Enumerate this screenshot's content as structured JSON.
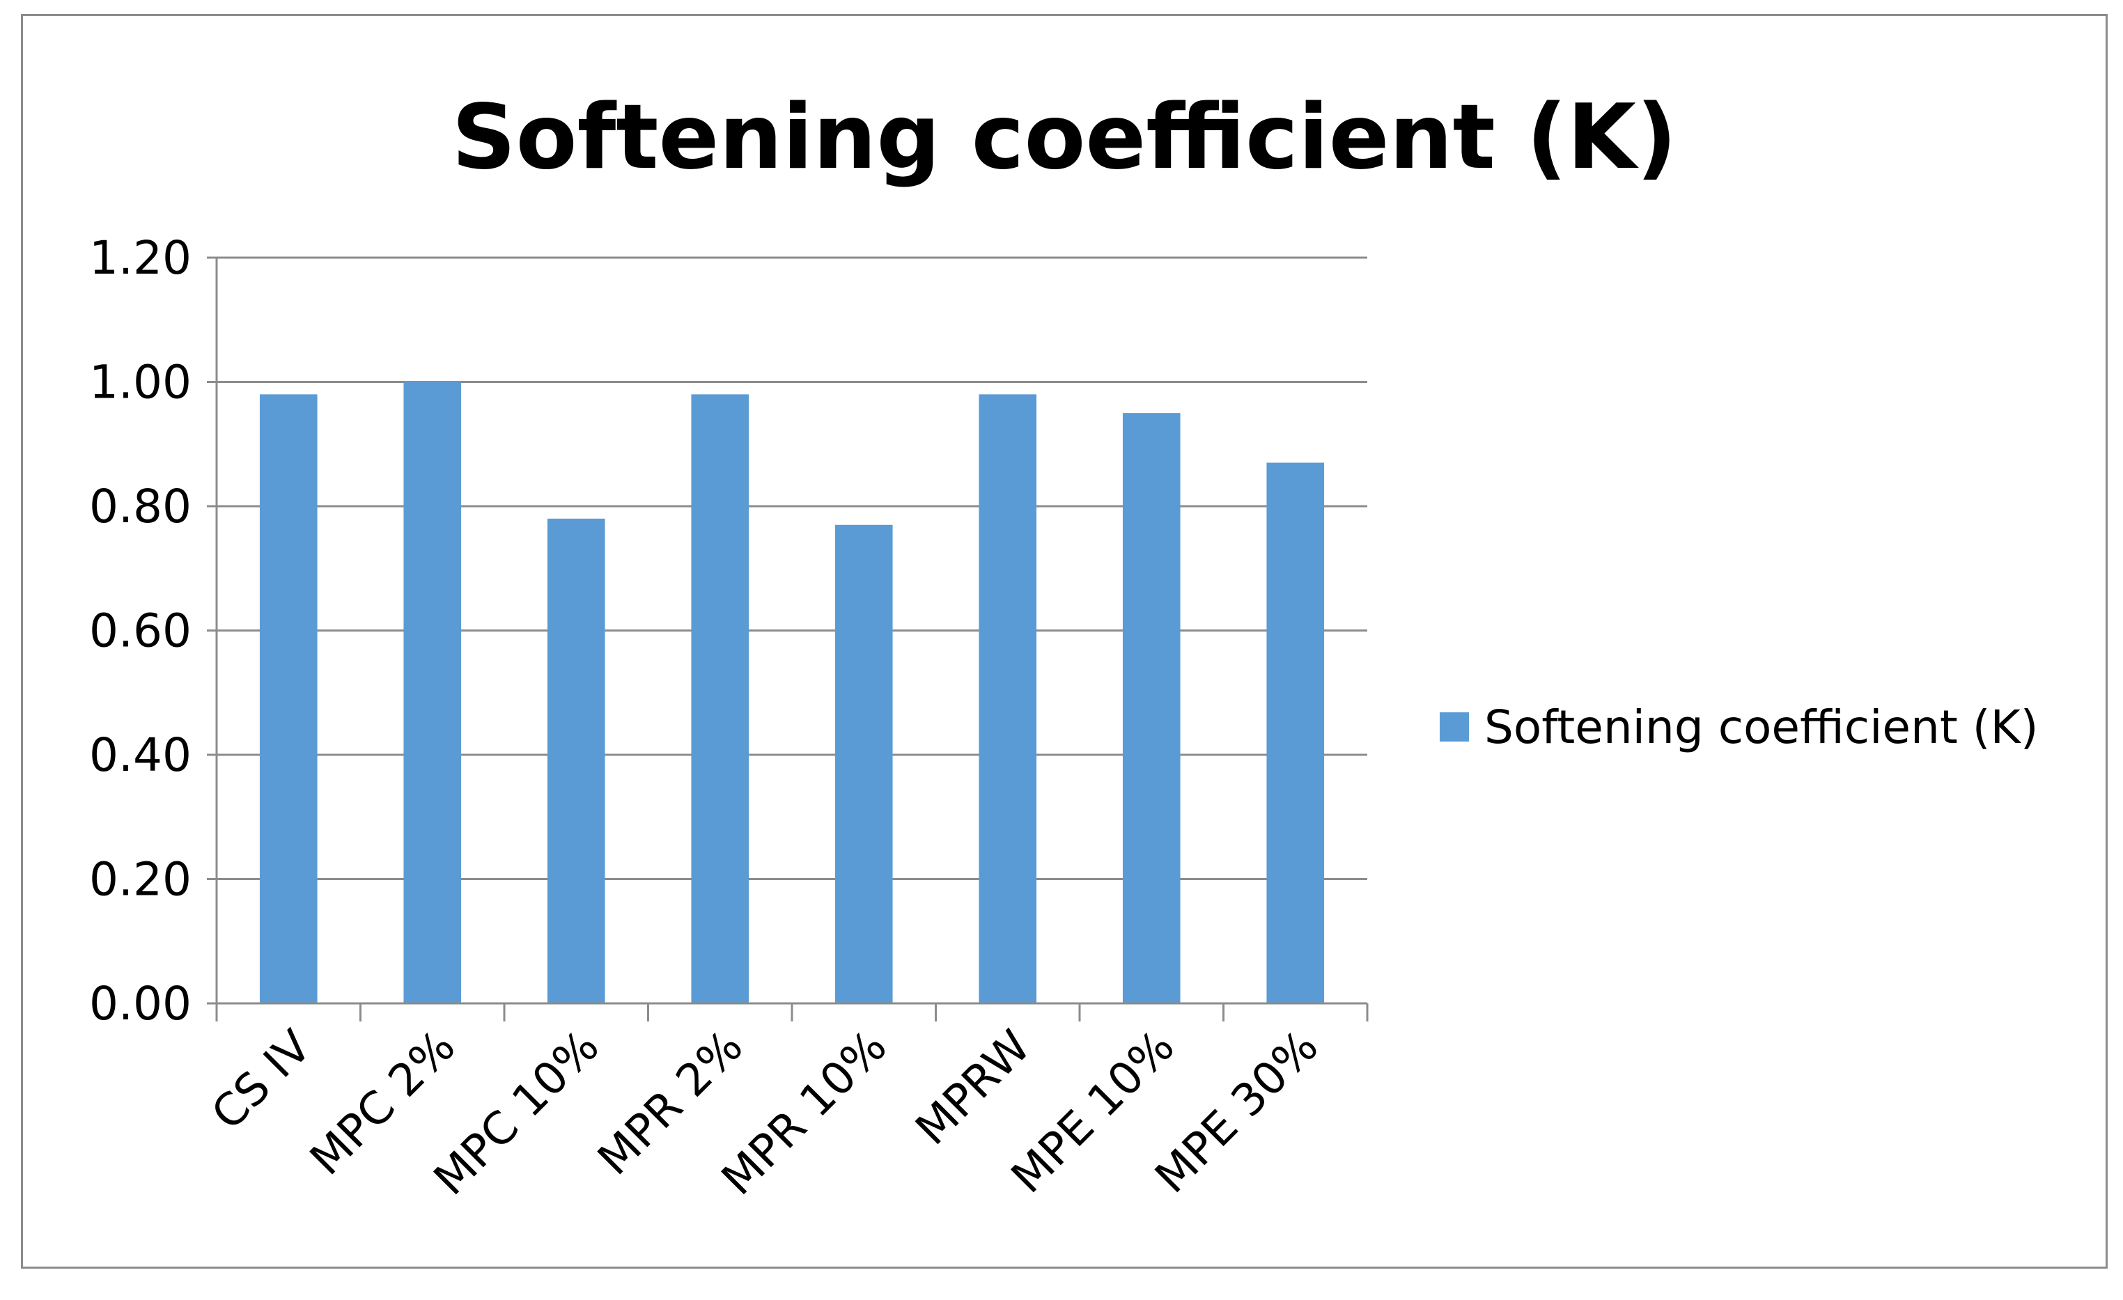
{
  "chart_data": {
    "type": "bar",
    "title": "Softening coefficient (K)",
    "xlabel": "",
    "ylabel": "",
    "categories": [
      "CS IV",
      "MPC 2%",
      "MPC 10%",
      "MPR 2%",
      "MPR 10%",
      "MPRW",
      "MPE 10%",
      "MPE 30%"
    ],
    "series": [
      {
        "name": "Softening coefficient (K)",
        "values": [
          0.98,
          1.0,
          0.78,
          0.98,
          0.77,
          0.98,
          0.95,
          0.87
        ],
        "color": "#5b9bd5"
      }
    ],
    "ylim": [
      0,
      1.2
    ],
    "yticks": [
      "0.00",
      "0.20",
      "0.40",
      "0.60",
      "0.80",
      "1.00",
      "1.20"
    ],
    "grid": true,
    "legend_position": "right",
    "gridline_color": "#8c8c8c",
    "axis_color": "#8c8c8c"
  }
}
